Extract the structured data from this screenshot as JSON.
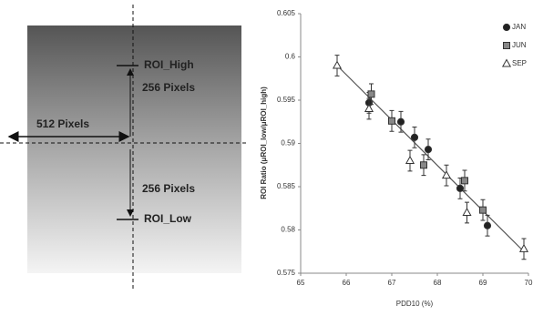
{
  "diagram": {
    "roi_high": "ROI_High",
    "upper_distance": "256 Pixels",
    "width": "512 Pixels",
    "lower_distance": "256 Pixels",
    "roi_low": "ROI_Low"
  },
  "chart_data": {
    "type": "scatter",
    "xlabel": "PDD10 (%)",
    "ylabel": "ROI Ratio (μROI_low/μROI_high)",
    "xlim": [
      65,
      70
    ],
    "xticks": [
      65,
      66,
      67,
      68,
      69,
      70
    ],
    "ylim": [
      0.575,
      0.605
    ],
    "yticks": [
      0.575,
      0.58,
      0.585,
      0.59,
      0.595,
      0.6,
      0.605
    ],
    "legend": "top-right",
    "series": [
      {
        "name": "JAN",
        "color": "#222222",
        "marker": "circle",
        "x": [
          66.5,
          67.2,
          67.5,
          67.8,
          68.5,
          69.1
        ],
        "values": [
          0.5947,
          0.5925,
          0.5907,
          0.5893,
          0.5848,
          0.5805
        ],
        "errors": [
          0.0012,
          0.0012,
          0.0012,
          0.0012,
          0.0012,
          0.0012
        ]
      },
      {
        "name": "JUN",
        "color": "#888888",
        "marker": "square",
        "x": [
          66.55,
          67.0,
          67.7,
          68.6,
          69.0
        ],
        "values": [
          0.5957,
          0.5926,
          0.5875,
          0.5857,
          0.5823
        ],
        "errors": [
          0.0012,
          0.0012,
          0.0012,
          0.0012,
          0.0012
        ]
      },
      {
        "name": "SEP",
        "color": "#ffffff",
        "marker": "triangle",
        "x": [
          65.8,
          66.5,
          67.4,
          68.2,
          68.65,
          69.9
        ],
        "values": [
          0.599,
          0.594,
          0.588,
          0.5863,
          0.582,
          0.5778
        ],
        "errors": [
          0.0012,
          0.0012,
          0.0012,
          0.0012,
          0.0012,
          0.0012
        ]
      }
    ],
    "trendline": {
      "x": [
        65.8,
        69.9
      ],
      "values": [
        0.599,
        0.5775
      ]
    }
  }
}
